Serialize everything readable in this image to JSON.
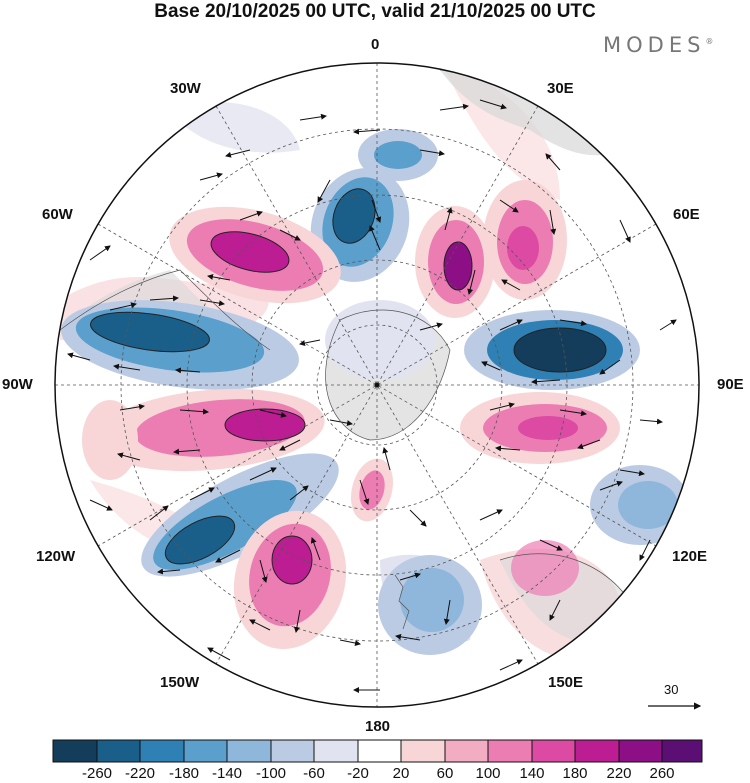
{
  "title": "Base 20/10/2025 00 UTC, valid 21/10/2025 00 UTC",
  "brand": "MODES",
  "brand_mark": "®",
  "longitude_labels": {
    "top": "0",
    "top_left": "30W",
    "top_right": "30E",
    "upper_left": "60W",
    "upper_right": "60E",
    "left": "90W",
    "right": "90E",
    "lower_left": "120W",
    "lower_right": "120E",
    "bottom_left": "150W",
    "bottom_right": "150E",
    "bottom": "180"
  },
  "vector_scale_label": "30",
  "colorbar": {
    "labels": [
      "-260",
      "-220",
      "-180",
      "-140",
      "-100",
      "-60",
      "-20",
      "20",
      "60",
      "100",
      "140",
      "180",
      "220",
      "260"
    ],
    "colors": [
      "#143d5c",
      "#1a5f8a",
      "#2f80b5",
      "#5b9fcc",
      "#8fb6db",
      "#bccbe4",
      "#e2e3f0",
      "#ffffff",
      "#f8d6d8",
      "#f3adc3",
      "#ec7db3",
      "#dd4aa3",
      "#bd1d93",
      "#8c0f86",
      "#5b0f74"
    ]
  },
  "colors": {
    "land": "#d9d9d9",
    "grid": "#555555",
    "title_text": "#111111"
  }
}
